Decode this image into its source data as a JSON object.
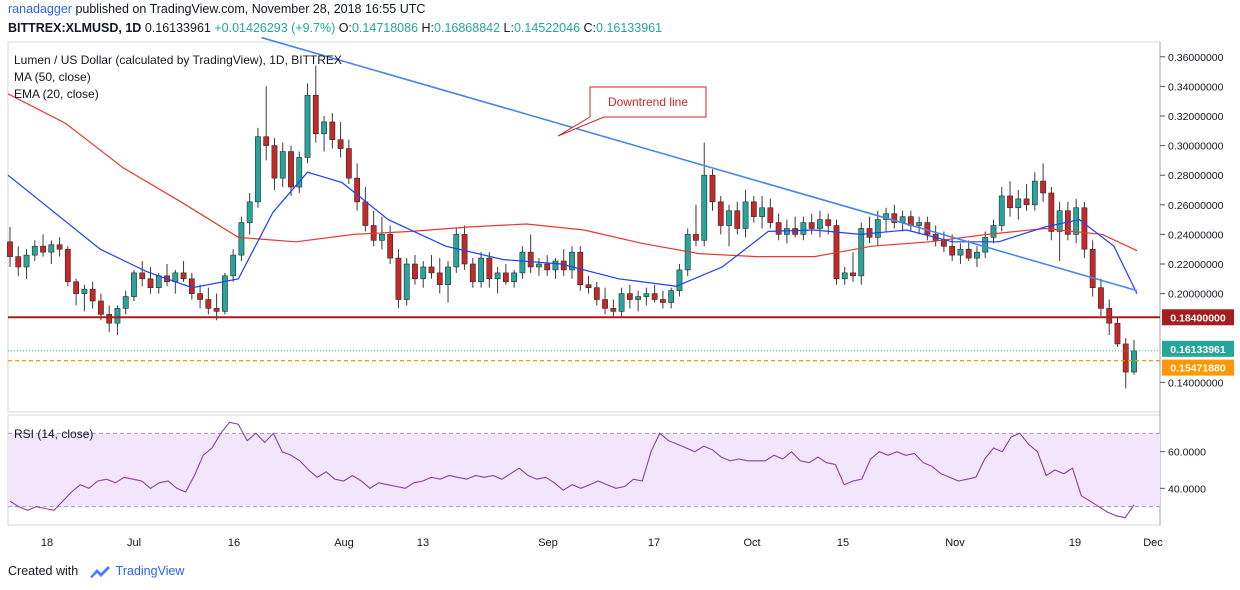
{
  "header": {
    "user": "ranadagger",
    "published": "published on TradingView.com, November 28, 2018 16:55 UTC",
    "symbol": "BITTREX:XLMUSD, 1D",
    "last": "0.16133961",
    "change": "+0.01426293 (+9.7%)",
    "ohlc_label_o": "O:",
    "ohlc_o": "0.14718086",
    "ohlc_label_h": "H:",
    "ohlc_h": "0.16868842",
    "ohlc_label_l": "L:",
    "ohlc_l": "0.14522046",
    "ohlc_label_c": "C:",
    "ohlc_c": "0.16133961"
  },
  "legend": {
    "title": "Lumen / US Dollar (calculated by TradingView), 1D, BITTREX",
    "ma": "MA (50, close)",
    "ema": "EMA (20, close)",
    "rsi": "RSI (14, close)"
  },
  "annotation": {
    "text": "Downtrend line"
  },
  "footer": {
    "created_with": "Created with",
    "brand": "TradingView"
  },
  "colors": {
    "up": "#26a69a",
    "down": "#c62828",
    "ma": "#e53935",
    "ema": "#1e40ff",
    "trend": "#4a86e8",
    "support": "#a51d1d",
    "current": "#26a69a",
    "dashed": "#ff9800",
    "rsi": "#8b3fa6",
    "rsi_band": "#f3e5fb"
  },
  "price_labels": {
    "support": "0.18400000",
    "current": "0.16133961",
    "dashed": "0.15471880"
  },
  "chart_data": [
    {
      "type": "candlestick",
      "y_ticks": [
        "0.36000000",
        "0.34000000",
        "0.32000000",
        "0.30000000",
        "0.28000000",
        "0.26000000",
        "0.24000000",
        "0.22000000",
        "0.20000000",
        "0.14000000"
      ],
      "ylim": [
        0.12,
        0.37
      ],
      "x_ticks": [
        "18",
        "Jul",
        "16",
        "Aug",
        "13",
        "Sep",
        "17",
        "Oct",
        "15",
        "Nov",
        "19",
        "Dec"
      ],
      "levels": {
        "support": 0.184,
        "current": 0.16133961,
        "dashed": 0.1547188
      },
      "ohlc": [
        [
          0.235,
          0.245,
          0.218,
          0.225
        ],
        [
          0.225,
          0.232,
          0.212,
          0.218
        ],
        [
          0.218,
          0.23,
          0.21,
          0.226
        ],
        [
          0.226,
          0.236,
          0.222,
          0.232
        ],
        [
          0.232,
          0.24,
          0.225,
          0.228
        ],
        [
          0.228,
          0.236,
          0.22,
          0.233
        ],
        [
          0.233,
          0.238,
          0.225,
          0.23
        ],
        [
          0.23,
          0.232,
          0.205,
          0.208
        ],
        [
          0.208,
          0.21,
          0.192,
          0.2
        ],
        [
          0.2,
          0.206,
          0.188,
          0.203
        ],
        [
          0.203,
          0.208,
          0.19,
          0.195
        ],
        [
          0.195,
          0.2,
          0.182,
          0.186
        ],
        [
          0.186,
          0.192,
          0.174,
          0.18
        ],
        [
          0.18,
          0.192,
          0.172,
          0.19
        ],
        [
          0.19,
          0.202,
          0.186,
          0.198
        ],
        [
          0.198,
          0.216,
          0.195,
          0.214
        ],
        [
          0.214,
          0.222,
          0.205,
          0.21
        ],
        [
          0.21,
          0.218,
          0.2,
          0.204
        ],
        [
          0.204,
          0.214,
          0.2,
          0.212
        ],
        [
          0.212,
          0.22,
          0.205,
          0.208
        ],
        [
          0.208,
          0.216,
          0.2,
          0.214
        ],
        [
          0.214,
          0.222,
          0.208,
          0.21
        ],
        [
          0.21,
          0.214,
          0.196,
          0.2
        ],
        [
          0.2,
          0.206,
          0.19,
          0.196
        ],
        [
          0.196,
          0.204,
          0.186,
          0.19
        ],
        [
          0.19,
          0.2,
          0.182,
          0.188
        ],
        [
          0.188,
          0.214,
          0.186,
          0.212
        ],
        [
          0.212,
          0.23,
          0.208,
          0.226
        ],
        [
          0.226,
          0.252,
          0.222,
          0.248
        ],
        [
          0.248,
          0.268,
          0.24,
          0.262
        ],
        [
          0.262,
          0.312,
          0.258,
          0.306
        ],
        [
          0.306,
          0.34,
          0.29,
          0.3
        ],
        [
          0.3,
          0.305,
          0.27,
          0.278
        ],
        [
          0.278,
          0.302,
          0.272,
          0.296
        ],
        [
          0.296,
          0.3,
          0.266,
          0.272
        ],
        [
          0.272,
          0.296,
          0.268,
          0.292
        ],
        [
          0.292,
          0.342,
          0.288,
          0.334
        ],
        [
          0.334,
          0.354,
          0.302,
          0.308
        ],
        [
          0.308,
          0.32,
          0.296,
          0.316
        ],
        [
          0.316,
          0.322,
          0.298,
          0.304
        ],
        [
          0.304,
          0.316,
          0.292,
          0.298
        ],
        [
          0.298,
          0.304,
          0.274,
          0.278
        ],
        [
          0.278,
          0.288,
          0.256,
          0.262
        ],
        [
          0.262,
          0.272,
          0.242,
          0.246
        ],
        [
          0.246,
          0.256,
          0.232,
          0.236
        ],
        [
          0.236,
          0.252,
          0.23,
          0.24
        ],
        [
          0.24,
          0.246,
          0.22,
          0.224
        ],
        [
          0.224,
          0.23,
          0.19,
          0.196
        ],
        [
          0.196,
          0.224,
          0.192,
          0.22
        ],
        [
          0.22,
          0.226,
          0.206,
          0.21
        ],
        [
          0.21,
          0.222,
          0.204,
          0.218
        ],
        [
          0.218,
          0.226,
          0.21,
          0.214
        ],
        [
          0.214,
          0.224,
          0.2,
          0.206
        ],
        [
          0.206,
          0.222,
          0.194,
          0.218
        ],
        [
          0.218,
          0.244,
          0.214,
          0.24
        ],
        [
          0.24,
          0.246,
          0.216,
          0.22
        ],
        [
          0.22,
          0.224,
          0.204,
          0.208
        ],
        [
          0.208,
          0.228,
          0.204,
          0.224
        ],
        [
          0.224,
          0.228,
          0.204,
          0.21
        ],
        [
          0.21,
          0.218,
          0.2,
          0.214
        ],
        [
          0.214,
          0.22,
          0.206,
          0.208
        ],
        [
          0.208,
          0.216,
          0.204,
          0.214
        ],
        [
          0.214,
          0.232,
          0.21,
          0.228
        ],
        [
          0.228,
          0.24,
          0.214,
          0.218
        ],
        [
          0.218,
          0.224,
          0.212,
          0.22
        ],
        [
          0.22,
          0.226,
          0.212,
          0.216
        ],
        [
          0.216,
          0.224,
          0.21,
          0.222
        ],
        [
          0.222,
          0.23,
          0.212,
          0.216
        ],
        [
          0.216,
          0.232,
          0.21,
          0.228
        ],
        [
          0.228,
          0.232,
          0.202,
          0.206
        ],
        [
          0.206,
          0.212,
          0.2,
          0.204
        ],
        [
          0.204,
          0.208,
          0.192,
          0.196
        ],
        [
          0.196,
          0.204,
          0.186,
          0.19
        ],
        [
          0.19,
          0.196,
          0.184,
          0.188
        ],
        [
          0.188,
          0.204,
          0.184,
          0.2
        ],
        [
          0.2,
          0.206,
          0.19,
          0.196
        ],
        [
          0.196,
          0.202,
          0.188,
          0.198
        ],
        [
          0.198,
          0.204,
          0.192,
          0.2
        ],
        [
          0.2,
          0.206,
          0.194,
          0.196
        ],
        [
          0.196,
          0.202,
          0.19,
          0.194
        ],
        [
          0.194,
          0.204,
          0.19,
          0.202
        ],
        [
          0.202,
          0.22,
          0.198,
          0.216
        ],
        [
          0.216,
          0.244,
          0.212,
          0.24
        ],
        [
          0.24,
          0.26,
          0.232,
          0.236
        ],
        [
          0.236,
          0.302,
          0.232,
          0.28
        ],
        [
          0.28,
          0.284,
          0.256,
          0.262
        ],
        [
          0.262,
          0.266,
          0.24,
          0.246
        ],
        [
          0.246,
          0.26,
          0.232,
          0.256
        ],
        [
          0.256,
          0.262,
          0.24,
          0.244
        ],
        [
          0.244,
          0.27,
          0.238,
          0.262
        ],
        [
          0.262,
          0.266,
          0.248,
          0.252
        ],
        [
          0.252,
          0.266,
          0.244,
          0.258
        ],
        [
          0.258,
          0.264,
          0.244,
          0.248
        ],
        [
          0.248,
          0.254,
          0.236,
          0.24
        ],
        [
          0.24,
          0.25,
          0.234,
          0.244
        ],
        [
          0.244,
          0.252,
          0.238,
          0.24
        ],
        [
          0.24,
          0.252,
          0.236,
          0.248
        ],
        [
          0.248,
          0.254,
          0.24,
          0.244
        ],
        [
          0.244,
          0.256,
          0.238,
          0.25
        ],
        [
          0.25,
          0.254,
          0.24,
          0.246
        ],
        [
          0.246,
          0.25,
          0.206,
          0.21
        ],
        [
          0.21,
          0.218,
          0.206,
          0.214
        ],
        [
          0.214,
          0.228,
          0.208,
          0.212
        ],
        [
          0.212,
          0.248,
          0.206,
          0.244
        ],
        [
          0.244,
          0.252,
          0.234,
          0.238
        ],
        [
          0.238,
          0.256,
          0.232,
          0.25
        ],
        [
          0.25,
          0.258,
          0.242,
          0.254
        ],
        [
          0.254,
          0.26,
          0.244,
          0.248
        ],
        [
          0.248,
          0.256,
          0.242,
          0.252
        ],
        [
          0.252,
          0.256,
          0.242,
          0.246
        ],
        [
          0.246,
          0.252,
          0.24,
          0.248
        ],
        [
          0.248,
          0.252,
          0.236,
          0.24
        ],
        [
          0.24,
          0.246,
          0.232,
          0.236
        ],
        [
          0.236,
          0.242,
          0.228,
          0.232
        ],
        [
          0.232,
          0.24,
          0.222,
          0.226
        ],
        [
          0.226,
          0.234,
          0.22,
          0.23
        ],
        [
          0.23,
          0.236,
          0.222,
          0.224
        ],
        [
          0.224,
          0.232,
          0.218,
          0.228
        ],
        [
          0.228,
          0.242,
          0.224,
          0.238
        ],
        [
          0.238,
          0.25,
          0.234,
          0.246
        ],
        [
          0.246,
          0.272,
          0.242,
          0.266
        ],
        [
          0.266,
          0.276,
          0.252,
          0.258
        ],
        [
          0.258,
          0.27,
          0.25,
          0.264
        ],
        [
          0.264,
          0.274,
          0.256,
          0.26
        ],
        [
          0.26,
          0.282,
          0.256,
          0.276
        ],
        [
          0.276,
          0.288,
          0.262,
          0.268
        ],
        [
          0.268,
          0.272,
          0.236,
          0.242
        ],
        [
          0.242,
          0.262,
          0.222,
          0.256
        ],
        [
          0.256,
          0.262,
          0.236,
          0.24
        ],
        [
          0.24,
          0.264,
          0.234,
          0.258
        ],
        [
          0.258,
          0.262,
          0.224,
          0.23
        ],
        [
          0.23,
          0.236,
          0.198,
          0.204
        ],
        [
          0.204,
          0.21,
          0.184,
          0.19
        ],
        [
          0.19,
          0.196,
          0.172,
          0.18
        ],
        [
          0.18,
          0.184,
          0.164,
          0.166
        ],
        [
          0.166,
          0.17,
          0.136,
          0.147
        ],
        [
          0.147,
          0.1687,
          0.1452,
          0.1613
        ]
      ],
      "ma50": [
        [
          0,
          0.335
        ],
        [
          0.05,
          0.315
        ],
        [
          0.1,
          0.285
        ],
        [
          0.15,
          0.262
        ],
        [
          0.2,
          0.238
        ],
        [
          0.25,
          0.235
        ],
        [
          0.3,
          0.24
        ],
        [
          0.35,
          0.242
        ],
        [
          0.4,
          0.245
        ],
        [
          0.45,
          0.247
        ],
        [
          0.5,
          0.243
        ],
        [
          0.55,
          0.234
        ],
        [
          0.6,
          0.227
        ],
        [
          0.65,
          0.225
        ],
        [
          0.7,
          0.225
        ],
        [
          0.75,
          0.232
        ],
        [
          0.8,
          0.235
        ],
        [
          0.85,
          0.24
        ],
        [
          0.9,
          0.244
        ],
        [
          0.95,
          0.24
        ],
        [
          0.98,
          0.229
        ]
      ],
      "ema20": [
        [
          0,
          0.28
        ],
        [
          0.04,
          0.255
        ],
        [
          0.08,
          0.23
        ],
        [
          0.12,
          0.215
        ],
        [
          0.16,
          0.204
        ],
        [
          0.2,
          0.21
        ],
        [
          0.23,
          0.255
        ],
        [
          0.26,
          0.282
        ],
        [
          0.29,
          0.275
        ],
        [
          0.33,
          0.25
        ],
        [
          0.38,
          0.232
        ],
        [
          0.43,
          0.223
        ],
        [
          0.48,
          0.22
        ],
        [
          0.53,
          0.21
        ],
        [
          0.58,
          0.205
        ],
        [
          0.62,
          0.218
        ],
        [
          0.66,
          0.242
        ],
        [
          0.7,
          0.243
        ],
        [
          0.74,
          0.24
        ],
        [
          0.78,
          0.243
        ],
        [
          0.82,
          0.235
        ],
        [
          0.86,
          0.235
        ],
        [
          0.9,
          0.245
        ],
        [
          0.93,
          0.25
        ],
        [
          0.96,
          0.232
        ],
        [
          0.98,
          0.2
        ]
      ],
      "trendline": {
        "from": [
          0.22,
          0.373
        ],
        "to": [
          0.98,
          0.202
        ]
      }
    },
    {
      "type": "line",
      "name": "RSI (14, close)",
      "y_ticks": [
        "60.0000",
        "40.0000"
      ],
      "ylim": [
        20,
        80
      ],
      "band": [
        30,
        70
      ],
      "values": [
        33,
        30,
        28,
        30,
        29,
        28,
        33,
        38,
        42,
        40,
        44,
        45,
        43,
        46,
        45,
        44,
        40,
        43,
        44,
        40,
        38,
        47,
        58,
        62,
        70,
        76,
        75,
        66,
        70,
        65,
        70,
        60,
        58,
        55,
        50,
        46,
        49,
        45,
        44,
        47,
        44,
        40,
        43,
        42,
        41,
        40,
        43,
        44,
        46,
        45,
        47,
        46,
        45,
        47,
        46,
        47,
        45,
        48,
        51,
        47,
        45,
        46,
        43,
        39,
        42,
        40,
        42,
        44,
        42,
        40,
        41,
        45,
        44,
        60,
        70,
        66,
        64,
        62,
        60,
        63,
        61,
        57,
        55,
        56,
        55,
        55,
        55,
        58,
        56,
        60,
        55,
        54,
        57,
        54,
        53,
        42,
        44,
        45,
        56,
        60,
        58,
        60,
        58,
        59,
        54,
        52,
        48,
        46,
        44,
        45,
        46,
        56,
        62,
        60,
        68,
        70,
        64,
        60,
        47,
        50,
        48,
        51,
        36,
        33,
        30,
        27,
        25,
        24,
        31
      ]
    }
  ]
}
